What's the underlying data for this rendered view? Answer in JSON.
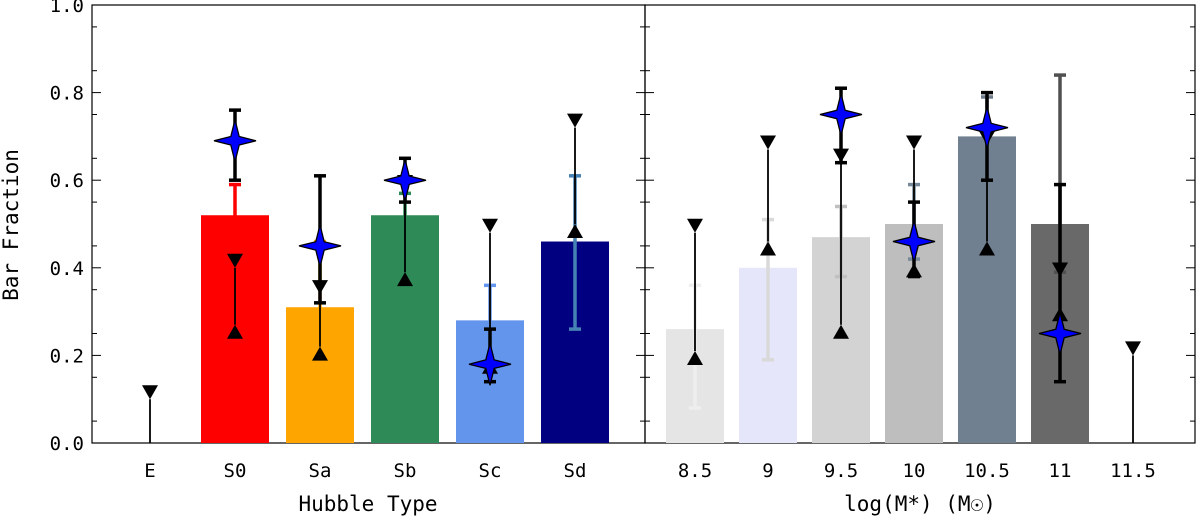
{
  "chart_data": [
    {
      "type": "bar",
      "panel": "left",
      "ylabel": "Bar Fraction",
      "xlabel": "Hubble Type",
      "ylim": [
        0.0,
        1.0
      ],
      "yticks": [
        "0.0",
        "0.2",
        "0.4",
        "0.6",
        "0.8",
        "1.0"
      ],
      "categories": [
        "E",
        "S0",
        "Sa",
        "Sb",
        "Sc",
        "Sd"
      ],
      "bars": [
        {
          "category": "E",
          "value": null,
          "color": "#ffffff",
          "err_low": null,
          "err_high": null
        },
        {
          "category": "S0",
          "value": 0.52,
          "color": "#ff0000",
          "err_low": 0.44,
          "err_high": 0.59
        },
        {
          "category": "Sa",
          "value": 0.31,
          "color": "#ffa500",
          "err_low": 0.18,
          "err_high": 0.46
        },
        {
          "category": "Sb",
          "value": 0.52,
          "color": "#2e8b57",
          "err_low": 0.46,
          "err_high": 0.57
        },
        {
          "category": "Sc",
          "value": 0.28,
          "color": "#6495ed",
          "err_low": 0.24,
          "err_high": 0.36
        },
        {
          "category": "Sd",
          "value": 0.46,
          "color": "#000080",
          "err_low": 0.26,
          "err_high": 0.61,
          "err_color": "#4682b4"
        }
      ],
      "limits": [
        {
          "category": "E",
          "upper": 0.1,
          "lower": null
        },
        {
          "category": "S0",
          "upper": 0.4,
          "lower": 0.27
        },
        {
          "category": "Sa",
          "upper": 0.34,
          "lower": 0.22
        },
        {
          "category": "Sb",
          "upper": 0.58,
          "lower": 0.39
        },
        {
          "category": "Sc",
          "upper": 0.48,
          "lower": 0.19
        },
        {
          "category": "Sd",
          "upper": 0.72,
          "lower": 0.5
        }
      ],
      "stars": [
        {
          "category": "S0",
          "value": 0.69,
          "err_low": 0.6,
          "err_high": 0.76
        },
        {
          "category": "Sa",
          "value": 0.45,
          "err_low": 0.32,
          "err_high": 0.61
        },
        {
          "category": "Sb",
          "value": 0.6,
          "err_low": 0.55,
          "err_high": 0.65
        },
        {
          "category": "Sc",
          "value": 0.18,
          "err_low": 0.14,
          "err_high": 0.26
        }
      ]
    },
    {
      "type": "bar",
      "panel": "right",
      "xlabel": "log(M*) (M☉)",
      "ylim": [
        0.0,
        1.0
      ],
      "categories": [
        "8.5",
        "9",
        "9.5",
        "10",
        "10.5",
        "11",
        "11.5"
      ],
      "bars": [
        {
          "category": "8.5",
          "value": 0.26,
          "color": "#e5e5e5",
          "err_low": 0.08,
          "err_high": 0.36,
          "err_color": "#eeeeee"
        },
        {
          "category": "9",
          "value": 0.4,
          "color": "#e6e6fa",
          "err_low": 0.19,
          "err_high": 0.51,
          "err_color": "#d9d9d9"
        },
        {
          "category": "9.5",
          "value": 0.47,
          "color": "#d3d3d3",
          "err_low": 0.38,
          "err_high": 0.54,
          "err_color": "#c0c0c0"
        },
        {
          "category": "10",
          "value": 0.5,
          "color": "#bebebe",
          "err_low": 0.42,
          "err_high": 0.59,
          "err_color": "#778899"
        },
        {
          "category": "10.5",
          "value": 0.7,
          "color": "#708090",
          "err_low": 0.6,
          "err_high": 0.79,
          "err_color": "#6e7b8b"
        },
        {
          "category": "11",
          "value": 0.5,
          "color": "#696969",
          "err_low": 0.39,
          "err_high": 0.84,
          "err_color": "#505050"
        },
        {
          "category": "11.5",
          "value": null,
          "color": "#ffffff",
          "err_low": null,
          "err_high": null
        }
      ],
      "limits": [
        {
          "category": "8.5",
          "upper": 0.48,
          "lower": 0.21
        },
        {
          "category": "9",
          "upper": 0.67,
          "lower": 0.46
        },
        {
          "category": "9.5",
          "upper": 0.64,
          "lower": 0.27
        },
        {
          "category": "10",
          "upper": 0.67,
          "lower": 0.41
        },
        {
          "category": "10.5",
          "upper": 0.68,
          "lower": 0.46
        },
        {
          "category": "11",
          "upper": 0.38,
          "lower": 0.31
        },
        {
          "category": "11.5",
          "upper": 0.2,
          "lower": null
        }
      ],
      "stars": [
        {
          "category": "9.5",
          "value": 0.75,
          "err_low": 0.64,
          "err_high": 0.81
        },
        {
          "category": "10",
          "value": 0.46,
          "err_low": 0.38,
          "err_high": 0.55
        },
        {
          "category": "10.5",
          "value": 0.72,
          "err_low": 0.6,
          "err_high": 0.8
        },
        {
          "category": "11",
          "value": 0.25,
          "err_low": 0.14,
          "err_high": 0.59
        }
      ]
    }
  ],
  "style": {
    "star_color": "#0000ff",
    "marker_color": "#000000"
  }
}
